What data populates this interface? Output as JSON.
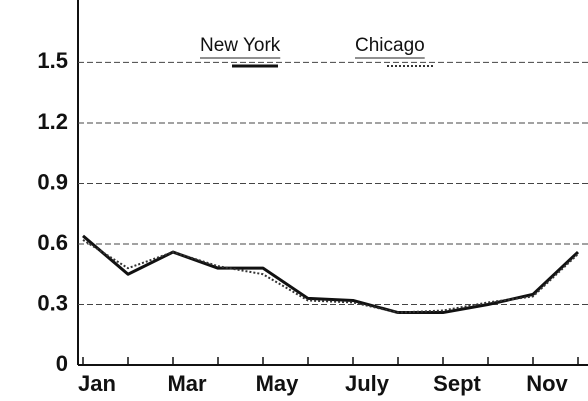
{
  "chart_data": {
    "type": "line",
    "categories": [
      "Jan",
      null,
      "Mar",
      null,
      "May",
      null,
      "July",
      null,
      "Sept",
      null,
      "Nov",
      null
    ],
    "series": [
      {
        "name": "New York",
        "color": "#111111",
        "style": "solid",
        "values": [
          0.64,
          0.45,
          0.56,
          0.48,
          0.48,
          0.33,
          0.32,
          0.26,
          0.26,
          0.3,
          0.35,
          0.56
        ]
      },
      {
        "name": "Chicago",
        "color": "#333333",
        "style": "dotted",
        "values": [
          0.62,
          0.48,
          0.56,
          0.49,
          0.45,
          0.32,
          0.31,
          0.26,
          0.27,
          0.31,
          0.34,
          0.55
        ]
      }
    ],
    "ylim": [
      0,
      1.75
    ],
    "yticks": [
      0,
      0.3,
      0.6,
      0.9,
      1.2,
      1.5
    ],
    "grid": true,
    "legend": "top"
  }
}
